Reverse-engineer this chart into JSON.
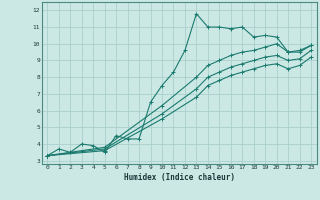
{
  "xlabel": "Humidex (Indice chaleur)",
  "ylabel": "",
  "xlim": [
    -0.5,
    23.5
  ],
  "ylim": [
    2.8,
    12.5
  ],
  "xticks": [
    0,
    1,
    2,
    3,
    4,
    5,
    6,
    7,
    8,
    9,
    10,
    11,
    12,
    13,
    14,
    15,
    16,
    17,
    18,
    19,
    20,
    21,
    22,
    23
  ],
  "yticks": [
    3,
    4,
    5,
    6,
    7,
    8,
    9,
    10,
    11,
    12
  ],
  "background_color": "#cce8e5",
  "grid_color": "#aacfcc",
  "line_color": "#1a7a6e",
  "series": [
    {
      "x": [
        0,
        1,
        2,
        3,
        4,
        5,
        6,
        7,
        8,
        9,
        10,
        11,
        12,
        13,
        14,
        15,
        16,
        17,
        18,
        19,
        20,
        21,
        22,
        23
      ],
      "y": [
        3.3,
        3.7,
        3.5,
        4.0,
        3.9,
        3.5,
        4.5,
        4.3,
        4.3,
        6.5,
        7.5,
        8.3,
        9.6,
        11.8,
        11.0,
        11.0,
        10.9,
        11.0,
        10.4,
        10.5,
        10.4,
        9.5,
        9.5,
        9.9
      ]
    },
    {
      "x": [
        0,
        5,
        10,
        13,
        14,
        15,
        16,
        17,
        18,
        19,
        20,
        21,
        22,
        23
      ],
      "y": [
        3.3,
        3.8,
        6.3,
        8.0,
        8.7,
        9.0,
        9.3,
        9.5,
        9.6,
        9.8,
        10.0,
        9.5,
        9.6,
        9.9
      ]
    },
    {
      "x": [
        0,
        5,
        10,
        13,
        14,
        15,
        16,
        17,
        18,
        19,
        20,
        21,
        22,
        23
      ],
      "y": [
        3.3,
        3.7,
        5.8,
        7.3,
        8.0,
        8.3,
        8.6,
        8.8,
        9.0,
        9.2,
        9.3,
        9.0,
        9.1,
        9.6
      ]
    },
    {
      "x": [
        0,
        5,
        10,
        13,
        14,
        15,
        16,
        17,
        18,
        19,
        20,
        21,
        22,
        23
      ],
      "y": [
        3.3,
        3.6,
        5.5,
        6.8,
        7.5,
        7.8,
        8.1,
        8.3,
        8.5,
        8.7,
        8.8,
        8.5,
        8.7,
        9.2
      ]
    }
  ]
}
